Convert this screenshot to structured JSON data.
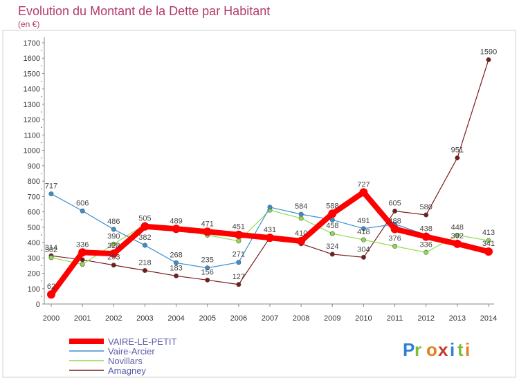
{
  "chart_data": {
    "type": "line",
    "title": "Evolution du Montant de la Dette par Habitant",
    "subtitle": "(en €)",
    "x": [
      "2000",
      "2001",
      "2002",
      "2003",
      "2004",
      "2005",
      "2006",
      "2007",
      "2008",
      "2009",
      "2010",
      "2011",
      "2012",
      "2013",
      "2014"
    ],
    "yticks": [
      "0",
      "100",
      "200",
      "300",
      "400",
      "500",
      "600",
      "700",
      "800",
      "900",
      "1000",
      "1100",
      "1200",
      "1300",
      "1400",
      "1500",
      "1600",
      "1700"
    ],
    "ylim": [
      0,
      1700
    ],
    "grid": false,
    "legend_position": "bottom-left",
    "series": [
      {
        "name": "Amagney",
        "color": "#7a1a1a",
        "values": [
          314,
          288,
          253,
          218,
          183,
          156,
          127,
          432,
          392,
          324,
          304,
          605,
          580,
          951,
          1590
        ],
        "labels": [
          "314",
          "",
          "253",
          "218",
          "183",
          "156",
          "127",
          "",
          "",
          "324",
          "304",
          "605",
          "580",
          "951",
          "1590"
        ]
      },
      {
        "name": "Novillars",
        "color": "#8fdc4f",
        "values": [
          302,
          258,
          390,
          517,
          487,
          448,
          410,
          611,
          558,
          458,
          418,
          376,
          336,
          448,
          413
        ],
        "labels": [
          "302",
          "",
          "390",
          "",
          "",
          "",
          "",
          "",
          "",
          "458",
          "418",
          "376",
          "336",
          "448",
          "413"
        ]
      },
      {
        "name": "Vaire-Arcier",
        "color": "#3a8fd0",
        "values": [
          717,
          606,
          486,
          382,
          268,
          235,
          271,
          630,
          584,
          548,
          491,
          520,
          450,
          390,
          334
        ],
        "labels": [
          "717",
          "606",
          "486",
          "382",
          "268",
          "235",
          "271",
          "",
          "584",
          "",
          "491",
          "",
          "",
          "",
          ""
        ]
      },
      {
        "name": "VAIRE-LE-PETIT",
        "color": "#ff0000",
        "values": [
          62,
          336,
          328,
          505,
          489,
          471,
          451,
          431,
          410,
          588,
          727,
          488,
          438,
          392,
          341
        ],
        "labels": [
          "62",
          "336",
          "328",
          "505",
          "489",
          "471",
          "451",
          "431",
          "410",
          "588",
          "727",
          "488",
          "438",
          "392",
          "341"
        ]
      }
    ]
  },
  "logo": {
    "letters": [
      "P",
      "r",
      "o",
      "x",
      "i",
      "t",
      "i"
    ],
    "colors": [
      "#2f7fd6",
      "#7cbd3a",
      "#e67e22",
      "#c0392b",
      "#2f7fd6",
      "#7cbd3a",
      "#e67e22"
    ]
  }
}
